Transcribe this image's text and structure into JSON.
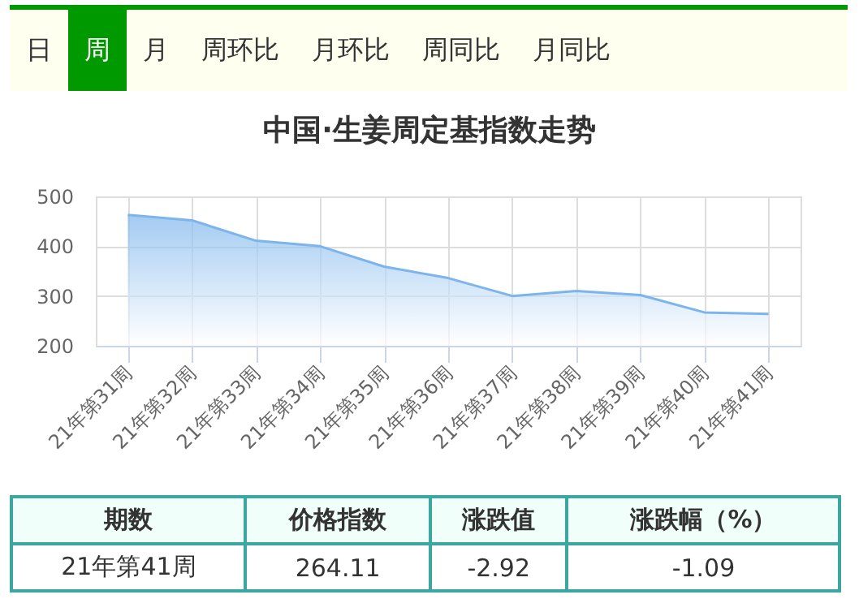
{
  "chart_data": [
    {
      "type": "other",
      "categories": [
        "日",
        "周",
        "月",
        "周环比",
        "月环比",
        "周同比",
        "月同比"
      ]
    },
    {
      "type": "area",
      "title": "中国·生姜周定基指数走势",
      "categories": [
        "21年第31周",
        "21年第32周",
        "21年第33周",
        "21年第34周",
        "21年第35周",
        "21年第36周",
        "21年第37周",
        "21年第38周",
        "21年第39周",
        "21年第40周",
        "21年第41周"
      ],
      "series": [
        {
          "color": "#7cb5ec",
          "values": [
            463,
            452,
            411,
            400,
            359,
            336,
            300,
            310,
            302,
            267,
            264
          ]
        }
      ],
      "ylim": [
        200,
        500
      ],
      "yticks": [
        200,
        300,
        400,
        500
      ],
      "grid": true
    },
    {
      "type": "other",
      "categories": [
        "期数",
        "价格指数",
        "涨跌值",
        "涨跌幅（%）"
      ],
      "annotations": [
        "21年第41周",
        "264.11",
        "-2.92",
        "-1.09"
      ]
    }
  ]
}
